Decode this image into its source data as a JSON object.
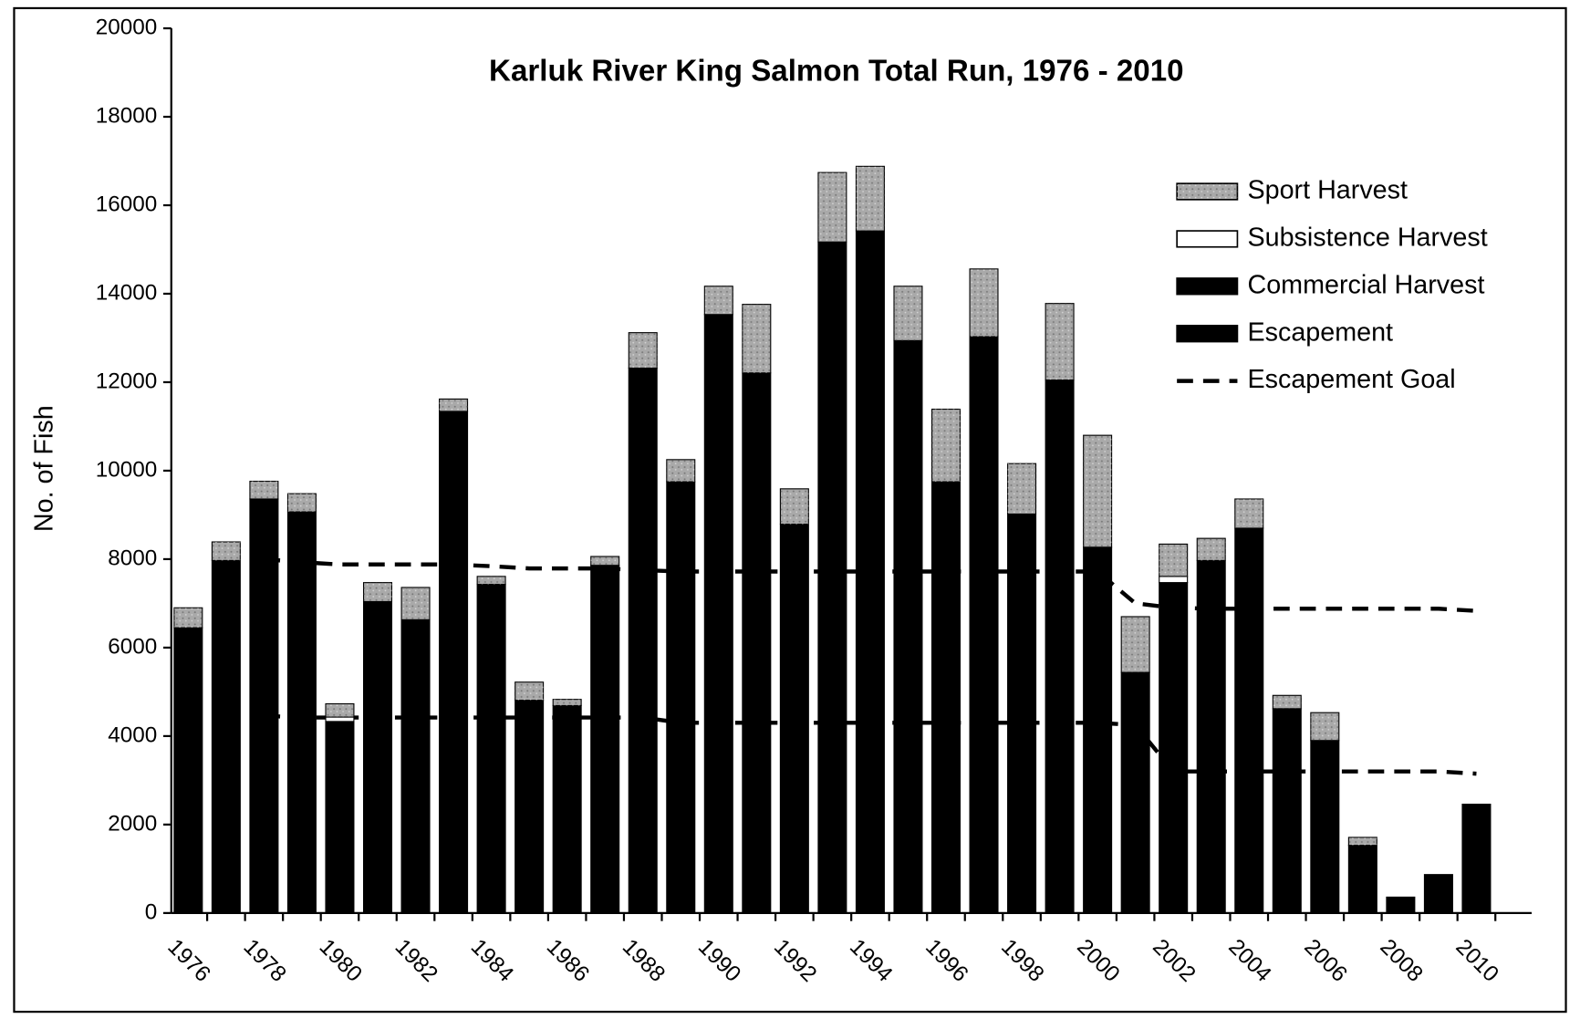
{
  "chart_data": {
    "type": "bar",
    "stacked": true,
    "title": "Karluk River King Salmon Total Run, 1976 - 2010",
    "y_label": "No. of Fish",
    "categories": [
      "1976",
      null,
      "1978",
      null,
      "1980",
      null,
      "1982",
      null,
      "1984",
      null,
      "1986",
      null,
      "1988",
      null,
      "1990",
      null,
      "1992",
      null,
      "1994",
      null,
      "1996",
      null,
      "1998",
      null,
      "2000",
      null,
      "2002",
      null,
      "2004",
      null,
      "2006",
      null,
      "2008",
      null,
      "2010"
    ],
    "series": [
      {
        "name": "Escapement",
        "color": "#000000",
        "values": [
          6450,
          7970,
          9360,
          9070,
          4330,
          7040,
          6630,
          11340,
          7430,
          4810,
          4690,
          7860,
          12320,
          9750,
          13530,
          12210,
          8790,
          15170,
          15420,
          12940,
          9750,
          13030,
          9020,
          12050,
          8270,
          5440,
          7470,
          7970,
          8700,
          4620,
          3900,
          1530,
          360,
          870,
          2460
        ]
      },
      {
        "name": "Commercial Harvest",
        "color": "#000000",
        "values": [
          0,
          0,
          0,
          0,
          0,
          0,
          0,
          0,
          0,
          0,
          0,
          0,
          0,
          0,
          0,
          0,
          0,
          0,
          0,
          0,
          0,
          0,
          0,
          0,
          0,
          0,
          0,
          0,
          0,
          0,
          0,
          0,
          0,
          0,
          0
        ]
      },
      {
        "name": "Subsistence Harvest",
        "color": "#ffffff",
        "values": [
          0,
          0,
          0,
          0,
          100,
          0,
          0,
          0,
          0,
          0,
          0,
          0,
          0,
          0,
          0,
          0,
          0,
          0,
          0,
          0,
          0,
          0,
          0,
          0,
          0,
          0,
          140,
          0,
          0,
          0,
          0,
          0,
          0,
          0,
          0
        ]
      },
      {
        "name": "Sport Harvest",
        "color": "#a9a9a9",
        "values": [
          450,
          420,
          400,
          410,
          300,
          430,
          730,
          280,
          180,
          410,
          140,
          200,
          800,
          500,
          640,
          1550,
          800,
          1570,
          1460,
          1230,
          1640,
          1530,
          1140,
          1730,
          2530,
          1260,
          730,
          500,
          660,
          300,
          630,
          180,
          0,
          0,
          0
        ]
      }
    ],
    "goal": {
      "name": "Escapement Goal",
      "color": "#000000",
      "upper": [
        null,
        null,
        8000,
        7930,
        7880,
        7880,
        7880,
        7880,
        7840,
        7790,
        7790,
        7790,
        7750,
        7720,
        7720,
        7720,
        7720,
        7720,
        7720,
        7720,
        7720,
        7720,
        7720,
        7720,
        7720,
        7000,
        6900,
        6880,
        6880,
        6880,
        6880,
        6880,
        6880,
        6880,
        6830
      ],
      "lower": [
        null,
        null,
        4460,
        4420,
        4420,
        4420,
        4420,
        4420,
        4420,
        4420,
        4420,
        4420,
        4420,
        4300,
        4300,
        4300,
        4300,
        4300,
        4300,
        4300,
        4300,
        4300,
        4300,
        4300,
        4300,
        4250,
        3200,
        3200,
        3200,
        3200,
        3200,
        3200,
        3200,
        3200,
        3150
      ]
    },
    "ylim": [
      0,
      20000
    ],
    "yticks": [
      0,
      2000,
      4000,
      6000,
      8000,
      10000,
      12000,
      14000,
      16000,
      18000,
      20000
    ]
  }
}
